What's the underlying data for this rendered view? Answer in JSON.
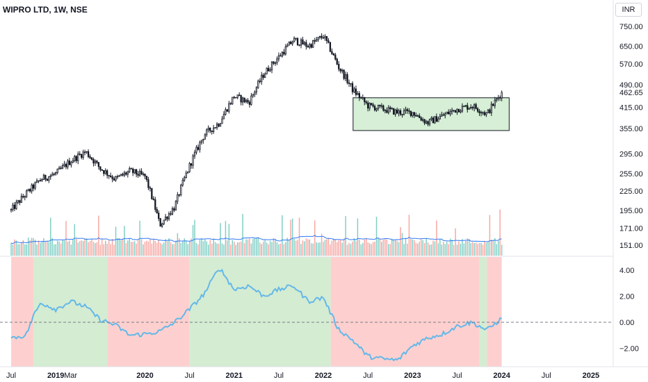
{
  "header": {
    "title": "WIPRO LTD, 1W, NSE",
    "currency": "INR"
  },
  "colors": {
    "candle": "#131722",
    "vol_up": "#7fcfc4",
    "vol_down": "#f7a7a3",
    "vol_ma": "#3179f5",
    "box_fill": "#d6efd6",
    "box_stroke": "#131722",
    "osc_line": "#64b8e8",
    "zone_green": "#d4ecd2",
    "zone_red": "#fdd0cf",
    "zero_line": "#787b86"
  },
  "chart_data": [
    {
      "type": "candlestick",
      "title": "WIPRO LTD, 1W, NSE",
      "currency": "INR",
      "y_scale": "log",
      "ylim": [
        140,
        790
      ],
      "y_ticks": [
        "750.00",
        "650.00",
        "570.00",
        "490.00",
        "462.65",
        "415.00",
        "355.00",
        "295.00",
        "255.00",
        "225.00",
        "195.00",
        "171.00",
        "151.00"
      ],
      "last_price": "462.65",
      "x_ticks": [
        "Jul",
        "2019",
        "Mar",
        "2020",
        "Jul",
        "2021",
        "Jul",
        "2022",
        "Jul",
        "2023",
        "Jul",
        "2024",
        "Jul",
        "2025"
      ],
      "bold_x_ticks": [
        "2019",
        "2020",
        "2021",
        "2022",
        "2023",
        "2024",
        "2025"
      ],
      "x_range": [
        "2018-07",
        "2025-04"
      ],
      "price_path": [
        [
          "2018-07",
          195
        ],
        [
          "2018-09",
          220
        ],
        [
          "2018-11",
          245
        ],
        [
          "2019-01",
          255
        ],
        [
          "2019-03",
          280
        ],
        [
          "2019-05",
          300
        ],
        [
          "2019-07",
          265
        ],
        [
          "2019-09",
          245
        ],
        [
          "2019-11",
          260
        ],
        [
          "2020-01",
          250
        ],
        [
          "2020-03",
          175
        ],
        [
          "2020-05",
          200
        ],
        [
          "2020-07",
          270
        ],
        [
          "2020-09",
          340
        ],
        [
          "2020-11",
          370
        ],
        [
          "2021-01",
          450
        ],
        [
          "2021-03",
          430
        ],
        [
          "2021-05",
          530
        ],
        [
          "2021-07",
          600
        ],
        [
          "2021-09",
          680
        ],
        [
          "2021-11",
          650
        ],
        [
          "2022-01",
          700
        ],
        [
          "2022-03",
          560
        ],
        [
          "2022-05",
          470
        ],
        [
          "2022-07",
          420
        ],
        [
          "2022-09",
          410
        ],
        [
          "2022-11",
          400
        ],
        [
          "2023-01",
          400
        ],
        [
          "2023-03",
          370
        ],
        [
          "2023-05",
          390
        ],
        [
          "2023-07",
          410
        ],
        [
          "2023-09",
          420
        ],
        [
          "2023-11",
          395
        ],
        [
          "2024-01",
          462.65
        ]
      ],
      "range_box": {
        "start": "2022-05",
        "end": "2024-02",
        "low": 350,
        "high": 445
      }
    },
    {
      "type": "bar",
      "series": [
        {
          "name": "",
          "kind": "volume"
        },
        {
          "name": "",
          "kind": "volume moving average"
        }
      ]
    },
    {
      "type": "line",
      "ylim": [
        -3.4,
        5
      ],
      "y_ticks": [
        "4.00",
        "2.00",
        "0.00",
        "−2.00"
      ],
      "zero_line": "dashed",
      "series_path": [
        [
          "2018-07",
          -1.2
        ],
        [
          "2018-09",
          -1.0
        ],
        [
          "2018-10",
          0.5
        ],
        [
          "2018-11",
          1.5
        ],
        [
          "2019-01",
          1.0
        ],
        [
          "2019-03",
          1.6
        ],
        [
          "2019-05",
          1.2
        ],
        [
          "2019-07",
          0.2
        ],
        [
          "2019-09",
          -0.2
        ],
        [
          "2019-11",
          -1.0
        ],
        [
          "2020-01",
          -0.9
        ],
        [
          "2020-03",
          -0.7
        ],
        [
          "2020-05",
          0.0
        ],
        [
          "2020-07",
          1.0
        ],
        [
          "2020-09",
          2.2
        ],
        [
          "2020-11",
          4.2
        ],
        [
          "2021-01",
          2.5
        ],
        [
          "2021-03",
          2.8
        ],
        [
          "2021-05",
          2.0
        ],
        [
          "2021-07",
          2.5
        ],
        [
          "2021-09",
          2.8
        ],
        [
          "2021-11",
          1.6
        ],
        [
          "2022-01",
          1.9
        ],
        [
          "2022-03",
          -0.5
        ],
        [
          "2022-05",
          -1.4
        ],
        [
          "2022-07",
          -2.6
        ],
        [
          "2022-09",
          -2.8
        ],
        [
          "2022-11",
          -2.9
        ],
        [
          "2023-01",
          -1.8
        ],
        [
          "2023-03",
          -1.2
        ],
        [
          "2023-05",
          -0.9
        ],
        [
          "2023-07",
          -0.3
        ],
        [
          "2023-09",
          0.0
        ],
        [
          "2023-11",
          -0.6
        ],
        [
          "2024-01",
          0.3
        ]
      ],
      "zones": [
        [
          "2018-07",
          "2018-10",
          "red"
        ],
        [
          "2018-10",
          "2019-08",
          "green"
        ],
        [
          "2019-08",
          "2020-07",
          "red"
        ],
        [
          "2020-07",
          "2022-02",
          "green"
        ],
        [
          "2022-02",
          "2023-10",
          "red"
        ],
        [
          "2023-10",
          "2023-11",
          "green"
        ],
        [
          "2023-11",
          "2024-01",
          "red"
        ]
      ]
    }
  ]
}
